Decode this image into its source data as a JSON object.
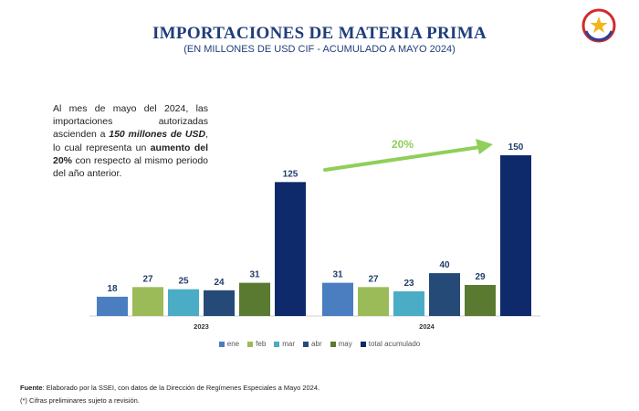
{
  "header": {
    "title": "IMPORTACIONES DE MATERIA PRIMA",
    "subtitle": "(EN MILLONES DE USD CIF - ACUMULADO A MAYO 2024)"
  },
  "note": {
    "part1": "Al mes de mayo del 2024, las importaciones autorizadas ascienden a ",
    "bold1": "150 millones de USD",
    "part2": ", lo cual representa un ",
    "bold2": "aumento del 20%",
    "part3": " con respecto al mismo periodo del año anterior."
  },
  "chart_data": {
    "type": "bar",
    "groups": [
      "2023",
      "2024"
    ],
    "series": [
      {
        "name": "ene",
        "color": "#4a7ec0",
        "values": [
          18,
          31
        ]
      },
      {
        "name": "feb",
        "color": "#9bbb59",
        "values": [
          27,
          27
        ]
      },
      {
        "name": "mar",
        "color": "#4bacc6",
        "values": [
          25,
          23
        ]
      },
      {
        "name": "abr",
        "color": "#264a78",
        "values": [
          24,
          40
        ]
      },
      {
        "name": "may",
        "color": "#5a7a32",
        "values": [
          31,
          29
        ]
      },
      {
        "name": "total acumulado",
        "color": "#0e2a6b",
        "values": [
          125,
          150
        ]
      }
    ],
    "ylim": [
      0,
      150
    ],
    "annotation": {
      "label": "20%",
      "color": "#8fcf5a"
    },
    "legend_position": "bottom",
    "grid": false
  },
  "footer": {
    "source_label": "Fuente",
    "source_text": ": Elaborado por la SSEI, con datos de la Dirección de Regímenes Especiales a Mayo 2024.",
    "note_text": "(*) Cifras preliminares sujeto a revisión."
  }
}
